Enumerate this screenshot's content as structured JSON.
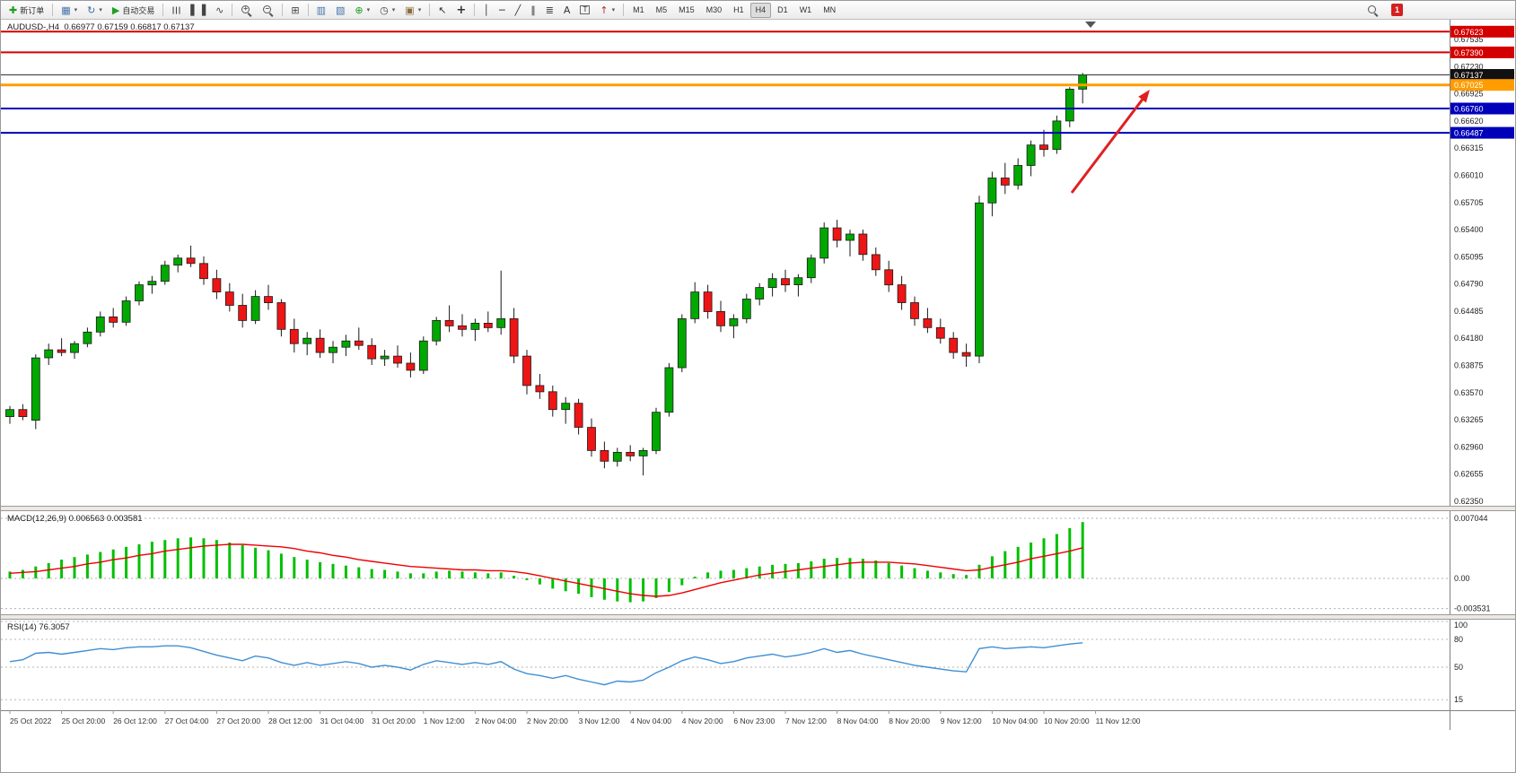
{
  "toolbar": {
    "items": [
      {
        "kind": "labelbtn",
        "name": "new-order-button",
        "icon": "new-order",
        "glyph": "✚",
        "glyph_color": "#1f9d1f",
        "label": "新订单"
      },
      {
        "kind": "sep"
      },
      {
        "kind": "iconbtn",
        "name": "new-chart-button",
        "icon": "new-chart",
        "glyph": "▦",
        "glyph_color": "#4472a8",
        "caret": true
      },
      {
        "kind": "iconbtn",
        "name": "profiles-button",
        "icon": "profiles",
        "glyph": "↻",
        "glyph_color": "#3a6ea5",
        "caret": true
      },
      {
        "kind": "labelbtn",
        "name": "autotrading-button",
        "icon": "autotrading",
        "glyph": "▶",
        "glyph_color": "#1fa11f",
        "label": "自动交易"
      },
      {
        "kind": "sep"
      },
      {
        "kind": "iconbtn",
        "name": "bar-chart-button",
        "icon": "bar-chart",
        "glyph": "☰",
        "glyph_color": "#444444",
        "rot": true
      },
      {
        "kind": "iconbtn",
        "name": "candlestick-chart-button",
        "icon": "candlestick-chart",
        "glyph": "▌▐",
        "glyph_color": "#444444"
      },
      {
        "kind": "iconbtn",
        "name": "line-chart-button",
        "icon": "line-chart",
        "glyph": "∿",
        "glyph_color": "#444444"
      },
      {
        "kind": "sep"
      },
      {
        "kind": "iconbtn",
        "name": "zoom-in-button",
        "icon": "zoom-in",
        "glyph": "+",
        "css": "mag"
      },
      {
        "kind": "iconbtn",
        "name": "zoom-out-button",
        "icon": "zoom-out",
        "glyph": "−",
        "css": "mag"
      },
      {
        "kind": "sep"
      },
      {
        "kind": "iconbtn",
        "name": "tile-windows-button",
        "icon": "tile-windows",
        "glyph": "⊞",
        "glyph_color": "#444444"
      },
      {
        "kind": "sep"
      },
      {
        "kind": "iconbtn",
        "name": "indicators-button",
        "icon": "indicators",
        "glyph": "▥",
        "glyph_color": "#4472a8"
      },
      {
        "kind": "iconbtn",
        "name": "objects-list-button",
        "icon": "objects-list",
        "glyph": "▧",
        "glyph_color": "#4472a8"
      },
      {
        "kind": "iconbtn",
        "name": "add-indicator-button",
        "icon": "add-indicator",
        "glyph": "⊕",
        "glyph_color": "#1f9d1f",
        "caret": true
      },
      {
        "kind": "iconbtn",
        "name": "periods-button",
        "icon": "clock",
        "glyph": "◷",
        "glyph_color": "#444444",
        "caret": true
      },
      {
        "kind": "iconbtn",
        "name": "templates-button",
        "icon": "template",
        "glyph": "▣",
        "glyph_color": "#8a6d3b",
        "caret": true
      },
      {
        "kind": "sep"
      },
      {
        "kind": "iconbtn",
        "name": "cursor-button",
        "icon": "cursor",
        "glyph": "↖",
        "glyph_color": "#333333"
      },
      {
        "kind": "iconbtn",
        "name": "crosshair-button",
        "icon": "crosshair",
        "glyph": "+",
        "glyph_color": "#333333",
        "big": true
      },
      {
        "kind": "sep"
      },
      {
        "kind": "iconbtn",
        "name": "vertical-line-button",
        "icon": "vertical-line",
        "glyph": "│",
        "glyph_color": "#333333"
      },
      {
        "kind": "iconbtn",
        "name": "horizontal-line-button",
        "icon": "horizontal-line",
        "glyph": "─",
        "glyph_color": "#333333"
      },
      {
        "kind": "iconbtn",
        "name": "trendline-button",
        "icon": "trendline",
        "glyph": "╱",
        "glyph_color": "#333333"
      },
      {
        "kind": "iconbtn",
        "name": "channel-button",
        "icon": "channel",
        "glyph": "∥",
        "glyph_color": "#333333"
      },
      {
        "kind": "iconbtn",
        "name": "fibonacci-button",
        "icon": "fibonacci",
        "glyph": "≣",
        "glyph_color": "#333333"
      },
      {
        "kind": "iconbtn",
        "name": "text-button",
        "icon": "text-tool",
        "glyph": "A",
        "glyph_color": "#333333"
      },
      {
        "kind": "iconbtn",
        "name": "text-label-button",
        "icon": "text-label",
        "glyph": "T",
        "glyph_color": "#333333",
        "boxed": true
      },
      {
        "kind": "iconbtn",
        "name": "arrows-button",
        "icon": "arrow-objects",
        "glyph": "↑",
        "glyph_color": "#b03030",
        "caret": true
      },
      {
        "kind": "sep"
      },
      {
        "kind": "tf",
        "name": "timeframe-m1-button",
        "label": "M1"
      },
      {
        "kind": "tf",
        "name": "timeframe-m5-button",
        "label": "M5"
      },
      {
        "kind": "tf",
        "name": "timeframe-m15-button",
        "label": "M15"
      },
      {
        "kind": "tf",
        "name": "timeframe-m30-button",
        "label": "M30"
      },
      {
        "kind": "tf",
        "name": "timeframe-h1-button",
        "label": "H1"
      },
      {
        "kind": "tf",
        "name": "timeframe-h4-button",
        "label": "H4",
        "active": true
      },
      {
        "kind": "tf",
        "name": "timeframe-d1-button",
        "label": "D1"
      },
      {
        "kind": "tf",
        "name": "timeframe-w1-button",
        "label": "W1"
      },
      {
        "kind": "tf",
        "name": "timeframe-mn-button",
        "label": "MN"
      },
      {
        "kind": "spacer"
      },
      {
        "kind": "iconbtn",
        "name": "search-button",
        "icon": "search",
        "glyph": "",
        "css": "mag"
      },
      {
        "kind": "badge",
        "name": "notification-badge",
        "label": "1"
      }
    ]
  },
  "chart_data": {
    "type": "candlestick",
    "symbol": "AUDUSD-",
    "period": "H4",
    "title_symbol": "AUDUSD-,H4",
    "title_ohlc": "0.66977 0.67159 0.66817 0.67137",
    "current_price": "0.67137",
    "candles": [
      [
        0.633,
        0.6342,
        0.6322,
        0.6338
      ],
      [
        0.6338,
        0.6344,
        0.6326,
        0.633
      ],
      [
        0.6326,
        0.64,
        0.6316,
        0.6396
      ],
      [
        0.6396,
        0.6412,
        0.6388,
        0.6405
      ],
      [
        0.6405,
        0.6418,
        0.6398,
        0.6402
      ],
      [
        0.6402,
        0.6415,
        0.6395,
        0.6412
      ],
      [
        0.6412,
        0.643,
        0.6408,
        0.6425
      ],
      [
        0.6425,
        0.6448,
        0.642,
        0.6442
      ],
      [
        0.6442,
        0.6452,
        0.643,
        0.6436
      ],
      [
        0.6436,
        0.6465,
        0.6432,
        0.646
      ],
      [
        0.646,
        0.6482,
        0.6455,
        0.6478
      ],
      [
        0.6478,
        0.6488,
        0.6468,
        0.6482
      ],
      [
        0.6482,
        0.6505,
        0.6478,
        0.65
      ],
      [
        0.65,
        0.6512,
        0.6492,
        0.6508
      ],
      [
        0.6508,
        0.6522,
        0.6498,
        0.6502
      ],
      [
        0.6502,
        0.651,
        0.6478,
        0.6485
      ],
      [
        0.6485,
        0.6495,
        0.6462,
        0.647
      ],
      [
        0.647,
        0.648,
        0.6448,
        0.6455
      ],
      [
        0.6455,
        0.6468,
        0.643,
        0.6438
      ],
      [
        0.6438,
        0.6472,
        0.6434,
        0.6465
      ],
      [
        0.6465,
        0.6478,
        0.645,
        0.6458
      ],
      [
        0.6458,
        0.6462,
        0.642,
        0.6428
      ],
      [
        0.6428,
        0.644,
        0.6402,
        0.6412
      ],
      [
        0.6412,
        0.6425,
        0.6399,
        0.6418
      ],
      [
        0.6418,
        0.6428,
        0.6396,
        0.6402
      ],
      [
        0.6402,
        0.6415,
        0.639,
        0.6408
      ],
      [
        0.6408,
        0.6422,
        0.6398,
        0.6415
      ],
      [
        0.6415,
        0.643,
        0.6405,
        0.641
      ],
      [
        0.641,
        0.6418,
        0.6388,
        0.6395
      ],
      [
        0.6395,
        0.6405,
        0.6387,
        0.6398
      ],
      [
        0.6398,
        0.641,
        0.6385,
        0.639
      ],
      [
        0.639,
        0.6402,
        0.6374,
        0.6382
      ],
      [
        0.6382,
        0.642,
        0.6378,
        0.6415
      ],
      [
        0.6415,
        0.6442,
        0.641,
        0.6438
      ],
      [
        0.6438,
        0.6455,
        0.6425,
        0.6432
      ],
      [
        0.6432,
        0.6445,
        0.642,
        0.6428
      ],
      [
        0.6428,
        0.644,
        0.6415,
        0.6435
      ],
      [
        0.6435,
        0.6448,
        0.6425,
        0.643
      ],
      [
        0.643,
        0.6494,
        0.6422,
        0.644
      ],
      [
        0.644,
        0.6452,
        0.639,
        0.6398
      ],
      [
        0.6398,
        0.6405,
        0.6355,
        0.6365
      ],
      [
        0.6365,
        0.6378,
        0.635,
        0.6358
      ],
      [
        0.6358,
        0.6365,
        0.633,
        0.6338
      ],
      [
        0.6338,
        0.6352,
        0.6322,
        0.6345
      ],
      [
        0.6345,
        0.635,
        0.631,
        0.6318
      ],
      [
        0.6318,
        0.6328,
        0.6285,
        0.6292
      ],
      [
        0.6292,
        0.6302,
        0.6272,
        0.628
      ],
      [
        0.628,
        0.6295,
        0.6274,
        0.629
      ],
      [
        0.629,
        0.6298,
        0.628,
        0.6286
      ],
      [
        0.6286,
        0.6295,
        0.6264,
        0.6292
      ],
      [
        0.6292,
        0.634,
        0.6288,
        0.6335
      ],
      [
        0.6335,
        0.639,
        0.633,
        0.6385
      ],
      [
        0.6385,
        0.6445,
        0.638,
        0.644
      ],
      [
        0.644,
        0.6481,
        0.6435,
        0.647
      ],
      [
        0.647,
        0.6478,
        0.644,
        0.6448
      ],
      [
        0.6448,
        0.646,
        0.6425,
        0.6432
      ],
      [
        0.6432,
        0.6445,
        0.6418,
        0.644
      ],
      [
        0.644,
        0.6468,
        0.6435,
        0.6462
      ],
      [
        0.6462,
        0.648,
        0.6455,
        0.6475
      ],
      [
        0.6475,
        0.6491,
        0.6465,
        0.6485
      ],
      [
        0.6485,
        0.6495,
        0.647,
        0.6478
      ],
      [
        0.6478,
        0.649,
        0.6465,
        0.6486
      ],
      [
        0.6486,
        0.6512,
        0.648,
        0.6508
      ],
      [
        0.6508,
        0.6548,
        0.6502,
        0.6542
      ],
      [
        0.6542,
        0.6551,
        0.652,
        0.6528
      ],
      [
        0.6528,
        0.654,
        0.651,
        0.6535
      ],
      [
        0.6535,
        0.654,
        0.6505,
        0.6512
      ],
      [
        0.6512,
        0.652,
        0.6488,
        0.6495
      ],
      [
        0.6495,
        0.6505,
        0.647,
        0.6478
      ],
      [
        0.6478,
        0.6488,
        0.645,
        0.6458
      ],
      [
        0.6458,
        0.6465,
        0.6432,
        0.644
      ],
      [
        0.644,
        0.6452,
        0.6424,
        0.643
      ],
      [
        0.643,
        0.644,
        0.6412,
        0.6418
      ],
      [
        0.6418,
        0.6425,
        0.6395,
        0.6402
      ],
      [
        0.6402,
        0.6412,
        0.6386,
        0.6398
      ],
      [
        0.6398,
        0.6578,
        0.639,
        0.657
      ],
      [
        0.657,
        0.6605,
        0.6555,
        0.6598
      ],
      [
        0.6598,
        0.6615,
        0.658,
        0.659
      ],
      [
        0.659,
        0.662,
        0.6585,
        0.6612
      ],
      [
        0.6612,
        0.664,
        0.66,
        0.6635
      ],
      [
        0.6635,
        0.6652,
        0.6622,
        0.663
      ],
      [
        0.663,
        0.6668,
        0.6625,
        0.6662
      ],
      [
        0.6662,
        0.67,
        0.6655,
        0.66977
      ],
      [
        0.66977,
        0.67159,
        0.66817,
        0.67137
      ]
    ],
    "time_labels": [
      "25 Oct 2022",
      "25 Oct 20:00",
      "26 Oct 12:00",
      "27 Oct 04:00",
      "27 Oct 20:00",
      "28 Oct 12:00",
      "31 Oct 04:00",
      "31 Oct 20:00",
      "1 Nov 12:00",
      "2 Nov 04:00",
      "2 Nov 20:00",
      "3 Nov 12:00",
      "4 Nov 04:00",
      "4 Nov 20:00",
      "6 Nov 23:00",
      "7 Nov 12:00",
      "8 Nov 04:00",
      "8 Nov 20:00",
      "9 Nov 12:00",
      "10 Nov 04:00",
      "10 Nov 20:00",
      "11 Nov 12:00"
    ],
    "price_ticks": [
      "0.67535",
      "0.67230",
      "0.66925",
      "0.66620",
      "0.66315",
      "0.66010",
      "0.65705",
      "0.65400",
      "0.65095",
      "0.64790",
      "0.64485",
      "0.64180",
      "0.63875",
      "0.63570",
      "0.63265",
      "0.62960",
      "0.62655",
      "0.62350"
    ],
    "levels": [
      {
        "value": "0.67623",
        "color": "#d40000",
        "width": 2
      },
      {
        "value": "0.67390",
        "color": "#d40000",
        "width": 2
      },
      {
        "value": "0.67137",
        "color": "#333333",
        "width": 1,
        "label_bg": "#111111",
        "kind": "current-price"
      },
      {
        "value": "0.67025",
        "color": "#ff9c00",
        "width": 3
      },
      {
        "value": "0.66760",
        "color": "#0000bb",
        "width": 2
      },
      {
        "value": "0.66487",
        "color": "#0000bb",
        "width": 2
      }
    ],
    "arrow": {
      "from": [
        1193,
        193
      ],
      "to": [
        1280,
        78
      ],
      "color": "#e02020"
    },
    "macd": {
      "label": "MACD(12,26,9) 0.006563 0.003581",
      "params": "12,26,9",
      "value_main": "0.006563",
      "value_signal": "0.003581",
      "axis": [
        "0.007044",
        "0.00",
        "-0.003531"
      ],
      "main": [
        0.0008,
        0.001,
        0.0014,
        0.0018,
        0.0022,
        0.0025,
        0.0028,
        0.0031,
        0.0034,
        0.0037,
        0.004,
        0.0043,
        0.0045,
        0.0047,
        0.0048,
        0.0047,
        0.0045,
        0.0042,
        0.0039,
        0.0036,
        0.0033,
        0.0029,
        0.0025,
        0.0022,
        0.0019,
        0.0017,
        0.0015,
        0.0013,
        0.0011,
        0.001,
        0.0008,
        0.0006,
        0.0006,
        0.0008,
        0.0009,
        0.0008,
        0.0007,
        0.0006,
        0.0007,
        0.0003,
        -0.0002,
        -0.0007,
        -0.0012,
        -0.0015,
        -0.0018,
        -0.0022,
        -0.0025,
        -0.0027,
        -0.0028,
        -0.0027,
        -0.0023,
        -0.0016,
        -0.0008,
        0.0002,
        0.0007,
        0.0009,
        0.001,
        0.0012,
        0.0014,
        0.0016,
        0.0017,
        0.0018,
        0.002,
        0.0023,
        0.0024,
        0.0024,
        0.0023,
        0.0021,
        0.0018,
        0.0015,
        0.0012,
        0.0009,
        0.0007,
        0.0005,
        0.0004,
        0.0016,
        0.0026,
        0.0032,
        0.0037,
        0.0042,
        0.0047,
        0.0052,
        0.0059,
        0.0066
      ],
      "signal": [
        0.0006,
        0.0007,
        0.0008,
        0.001,
        0.0012,
        0.0014,
        0.0017,
        0.0019,
        0.0022,
        0.0024,
        0.0027,
        0.0029,
        0.0032,
        0.0034,
        0.0036,
        0.0038,
        0.0039,
        0.004,
        0.004,
        0.0039,
        0.0038,
        0.0037,
        0.0035,
        0.0032,
        0.003,
        0.0027,
        0.0025,
        0.0022,
        0.002,
        0.0018,
        0.0016,
        0.0014,
        0.0013,
        0.0012,
        0.0011,
        0.001,
        0.001,
        0.0009,
        0.0009,
        0.0008,
        0.0006,
        0.0003,
        0.0,
        -0.0003,
        -0.0006,
        -0.0009,
        -0.0012,
        -0.0015,
        -0.0018,
        -0.002,
        -0.0021,
        -0.002,
        -0.0017,
        -0.0013,
        -0.0009,
        -0.0005,
        -0.0002,
        0.0001,
        0.0004,
        0.0006,
        0.0008,
        0.001,
        0.0012,
        0.0014,
        0.0016,
        0.0018,
        0.0019,
        0.0019,
        0.0019,
        0.0018,
        0.0017,
        0.0015,
        0.0013,
        0.0011,
        0.0009,
        0.001,
        0.0013,
        0.0016,
        0.0019,
        0.0023,
        0.0026,
        0.0029,
        0.0032,
        0.0036
      ]
    },
    "rsi": {
      "label": "RSI(14) 76.3057",
      "value": "76.3057",
      "axis": [
        "100",
        "80",
        "50",
        "15"
      ],
      "values": [
        56,
        58,
        65,
        66,
        64,
        66,
        68,
        70,
        69,
        71,
        72,
        72,
        73,
        73,
        71,
        67,
        63,
        60,
        57,
        62,
        60,
        55,
        52,
        55,
        52,
        54,
        56,
        54,
        50,
        52,
        50,
        47,
        53,
        57,
        55,
        53,
        55,
        53,
        56,
        48,
        43,
        41,
        38,
        41,
        37,
        34,
        31,
        35,
        34,
        36,
        44,
        50,
        57,
        61,
        58,
        54,
        56,
        60,
        62,
        64,
        61,
        63,
        66,
        70,
        66,
        68,
        64,
        61,
        58,
        55,
        52,
        50,
        48,
        46,
        45,
        70,
        72,
        70,
        71,
        72,
        71,
        73,
        75,
        76.3
      ]
    },
    "colors": {
      "up": "#00a800",
      "down": "#ed1515",
      "outline": "#1a1a1a",
      "macd_bar": "#00c000",
      "macd_signal": "#ee0000",
      "rsi_line": "#3f8fd4"
    }
  }
}
